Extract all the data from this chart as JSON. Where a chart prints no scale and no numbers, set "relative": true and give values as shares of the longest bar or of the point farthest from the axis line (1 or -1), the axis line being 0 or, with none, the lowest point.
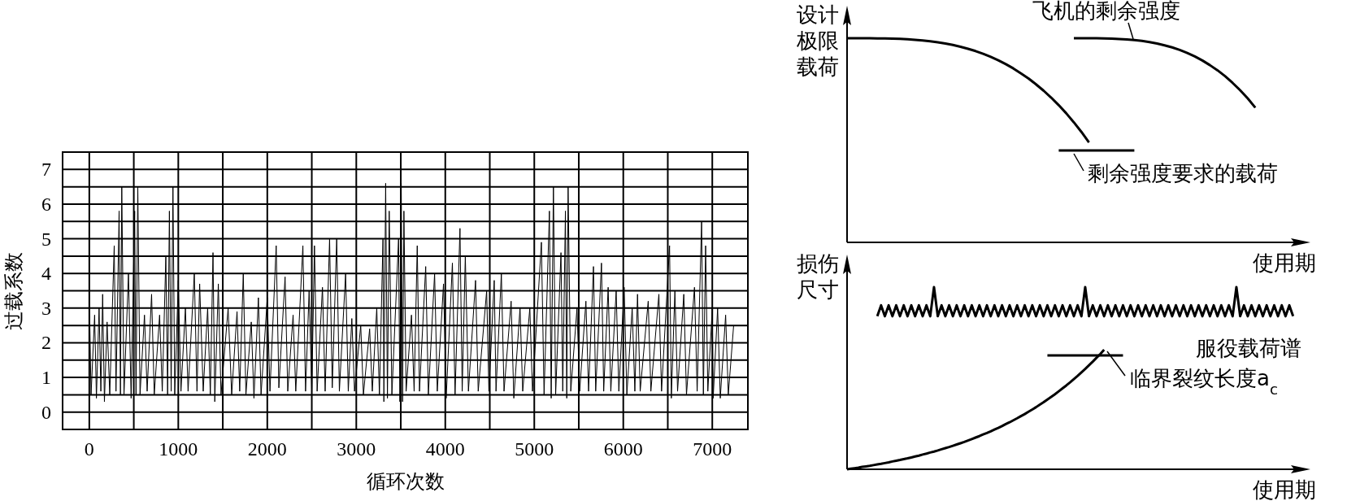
{
  "chart_data": [
    {
      "type": "line",
      "xlabel": "循环次数",
      "ylabel": "过载系数",
      "xlim": [
        -300,
        7400
      ],
      "ylim": [
        -0.5,
        7.5
      ],
      "grid": true,
      "xticks": [
        0,
        {
          "value": 500,
          "label": null
        },
        1000,
        {
          "value": 1500,
          "label": null
        },
        2000,
        {
          "value": 2500,
          "label": null
        },
        3000,
        {
          "value": 3500,
          "label": null
        },
        4000,
        {
          "value": 4500,
          "label": null
        },
        5000,
        {
          "value": 5500,
          "label": null
        },
        6000,
        {
          "value": 6500,
          "label": null
        },
        7000
      ],
      "yticks": [
        0,
        {
          "value": 0.5,
          "label": null
        },
        1,
        {
          "value": 1.5,
          "label": null
        },
        2,
        {
          "value": 2.5,
          "label": null
        },
        3,
        {
          "value": 3.5,
          "label": null
        },
        4,
        {
          "value": 4.5,
          "label": null
        },
        5,
        {
          "value": 5.5,
          "label": null
        },
        6,
        {
          "value": 6.5,
          "label": null
        },
        7
      ],
      "x": [
        0,
        20,
        60,
        80,
        110,
        130,
        150,
        170,
        200,
        230,
        280,
        300,
        335,
        350,
        365,
        390,
        440,
        470,
        510,
        525,
        545,
        570,
        620,
        650,
        700,
        730,
        790,
        820,
        860,
        880,
        900,
        920,
        940,
        960,
        1000,
        1030,
        1080,
        1110,
        1180,
        1210,
        1240,
        1280,
        1330,
        1360,
        1390,
        1410,
        1450,
        1480,
        1560,
        1600,
        1660,
        1690,
        1730,
        1760,
        1820,
        1850,
        1900,
        1930,
        2000,
        2030,
        2100,
        2130,
        2200,
        2230,
        2290,
        2320,
        2400,
        2430,
        2470,
        2500,
        2530,
        2560,
        2620,
        2650,
        2700,
        2730,
        2780,
        2810,
        2880,
        2910,
        2950,
        2980,
        3050,
        3080,
        3150,
        3180,
        3230,
        3260,
        3300,
        3310,
        3330,
        3350,
        3370,
        3400,
        3475,
        3490,
        3505,
        3520,
        3535,
        3560,
        3620,
        3650,
        3685,
        3710,
        3780,
        3810,
        3880,
        3910,
        3980,
        4010,
        4080,
        4110,
        4165,
        4190,
        4225,
        4260,
        4340,
        4370,
        4465,
        4490,
        4550,
        4570,
        4630,
        4660,
        4740,
        4770,
        4840,
        4870,
        4950,
        4980,
        5080,
        5110,
        5170,
        5190,
        5215,
        5240,
        5300,
        5320,
        5350,
        5365,
        5380,
        5410,
        5480,
        5510,
        5580,
        5610,
        5665,
        5690,
        5755,
        5780,
        5830,
        5860,
        5920,
        5950,
        6010,
        6040,
        6100,
        6130,
        6160,
        6190,
        6280,
        6310,
        6400,
        6430,
        6520,
        6540,
        6580,
        6610,
        6680,
        6710,
        6800,
        6830,
        6880,
        6900,
        6925,
        6950,
        7000,
        7010,
        7060,
        7090,
        7150,
        7180,
        7240
      ],
      "series": [
        {
          "color": "#000000",
          "values": [
            3.4,
            0.5,
            2.8,
            0.4,
            3.0,
            0.6,
            3.4,
            0.3,
            2.6,
            0.5,
            4.8,
            0.6,
            5.8,
            0.5,
            6.5,
            0.5,
            4.0,
            0.4,
            5.8,
            0.5,
            6.5,
            0.5,
            2.8,
            0.6,
            3.4,
            0.5,
            2.8,
            0.6,
            4.5,
            0.5,
            5.8,
            0.6,
            6.5,
            0.5,
            3.8,
            0.6,
            3.0,
            0.6,
            4.0,
            0.6,
            3.7,
            0.6,
            3.0,
            0.5,
            4.6,
            0.3,
            3.7,
            0.5,
            3.0,
            0.5,
            2.9,
            0.6,
            4.0,
            0.5,
            2.6,
            0.4,
            3.3,
            0.5,
            3.3,
            0.6,
            4.8,
            0.7,
            3.9,
            0.6,
            2.8,
            0.6,
            4.8,
            0.6,
            3.5,
            0.6,
            4.8,
            0.6,
            3.6,
            0.6,
            5.0,
            0.7,
            5.0,
            0.6,
            4.0,
            0.6,
            2.7,
            0.6,
            2.5,
            0.5,
            2.4,
            0.6,
            3.0,
            0.5,
            5.0,
            0.3,
            6.6,
            0.4,
            5.8,
            0.5,
            5.0,
            0.3,
            6.6,
            0.3,
            5.8,
            0.6,
            2.8,
            0.6,
            4.8,
            0.6,
            4.2,
            0.5,
            4.0,
            0.6,
            3.7,
            0.4,
            4.3,
            0.5,
            5.3,
            0.6,
            4.5,
            0.6,
            3.8,
            0.6,
            3.5,
            0.6,
            3.8,
            0.6,
            4.0,
            0.6,
            3.2,
            0.4,
            3.0,
            0.6,
            3.0,
            0.6,
            4.9,
            0.5,
            5.8,
            0.4,
            6.5,
            0.5,
            4.6,
            0.6,
            5.8,
            0.4,
            6.5,
            0.6,
            3.0,
            0.6,
            3.2,
            0.6,
            4.2,
            0.6,
            4.3,
            0.6,
            3.6,
            0.6,
            3.5,
            0.6,
            3.6,
            0.5,
            3.0,
            0.6,
            3.4,
            0.6,
            3.2,
            0.6,
            3.4,
            0.6,
            4.8,
            0.4,
            3.5,
            0.6,
            3.4,
            0.5,
            3.6,
            0.6,
            5.5,
            0.5,
            4.8,
            0.6,
            3.0,
            0.4,
            3.0,
            0.4,
            2.8,
            0.5,
            2.5
          ]
        }
      ]
    },
    {
      "type": "line",
      "relative": true,
      "ylabel": "设计极限载荷",
      "xlabel": "使用期",
      "categories": [
        null,
        null,
        null,
        null,
        null,
        null,
        null,
        null,
        null,
        null,
        null,
        null,
        null,
        null,
        null,
        null,
        null,
        null,
        null,
        null,
        null,
        null,
        null,
        null,
        null,
        null,
        null,
        null,
        null,
        null,
        null,
        null,
        null,
        null,
        null,
        null,
        null,
        null,
        null,
        null,
        null,
        null,
        null,
        null,
        null,
        null,
        null,
        null,
        null,
        null,
        null,
        null,
        null,
        null,
        null,
        null,
        null,
        null,
        null,
        null,
        null
      ],
      "annotations": [
        "飞机的剩余强度",
        "剩余强度要求的载荷"
      ],
      "series": [
        {
          "color": "#000000",
          "values": [
            1,
            1,
            1,
            1,
            0.999,
            0.999,
            0.998,
            0.997,
            0.995,
            0.992,
            0.989,
            0.985,
            0.98,
            0.974,
            0.967,
            0.958,
            0.948,
            0.937,
            0.924,
            0.909,
            0.892,
            0.873,
            0.852,
            0.828,
            0.803,
            0.774,
            0.743,
            0.709,
            0.672,
            0.632,
            0.588,
            0.541,
            0.49,
            null,
            null,
            null,
            null,
            null,
            null,
            null,
            null,
            null,
            null,
            null,
            null,
            null,
            null,
            null,
            null,
            null,
            null,
            null,
            null,
            null,
            null,
            null,
            null,
            null,
            null,
            null,
            null
          ]
        },
        {
          "color": "#000000",
          "values": [
            null,
            null,
            null,
            null,
            null,
            null,
            null,
            null,
            null,
            null,
            null,
            null,
            null,
            null,
            null,
            null,
            null,
            null,
            null,
            null,
            null,
            null,
            null,
            null,
            null,
            null,
            null,
            null,
            null,
            null,
            1,
            1,
            1,
            1,
            0.999,
            0.998,
            0.996,
            0.994,
            0.991,
            0.987,
            0.981,
            0.974,
            0.965,
            0.955,
            0.943,
            0.928,
            0.911,
            0.891,
            0.868,
            0.843,
            0.814,
            0.781,
            0.745,
            0.705,
            0.66,
            null,
            null,
            null,
            null,
            null,
            null
          ]
        },
        {
          "color": "#000000",
          "values": [
            null,
            null,
            null,
            null,
            null,
            null,
            null,
            null,
            null,
            null,
            null,
            null,
            null,
            null,
            null,
            null,
            null,
            null,
            null,
            null,
            null,
            null,
            null,
            null,
            null,
            null,
            null,
            null,
            0.45,
            0.45,
            0.45,
            0.45,
            0.45,
            0.45,
            0.45,
            0.45,
            0.45,
            0.45,
            0.45,
            null,
            null,
            null,
            null,
            null,
            null,
            null,
            null,
            null,
            null,
            null,
            null,
            null,
            null,
            null,
            null,
            null,
            null,
            null,
            null,
            null,
            null
          ]
        }
      ]
    },
    {
      "type": "line",
      "relative": true,
      "ylabel": "损伤尺寸",
      "xlabel": "使用期",
      "categories": [
        null,
        null,
        null,
        null,
        null,
        null,
        null,
        null,
        null,
        null,
        null,
        null,
        null,
        null,
        null,
        null,
        null,
        null,
        null,
        null,
        null,
        null,
        null,
        null,
        null,
        null,
        null,
        null,
        null,
        null,
        null,
        null,
        null,
        null,
        null,
        null,
        null,
        null,
        null,
        null,
        null,
        null,
        null,
        null,
        null,
        null,
        null,
        null,
        null,
        null,
        null,
        null,
        null,
        null,
        null,
        null,
        null,
        null,
        null,
        null,
        null,
        null,
        null,
        null,
        null,
        null,
        null,
        null,
        null,
        null,
        null,
        null,
        null,
        null,
        null,
        null,
        null,
        null,
        null,
        null,
        null,
        null,
        null,
        null,
        null,
        null,
        null,
        null,
        null,
        null,
        null,
        null,
        null,
        null,
        null,
        null,
        null,
        null,
        null,
        null,
        null,
        null,
        null,
        null,
        null,
        null,
        null,
        null,
        null,
        null,
        null,
        null,
        null,
        null,
        null,
        null,
        null,
        null,
        null,
        null,
        null
      ],
      "annotations": [
        "临界裂纹长度a$_{c}$"
      ],
      "series": [
        {
          "color": "#000000",
          "values": [
            0,
            0.003,
            0.006,
            0.009,
            0.013,
            0.016,
            0.019,
            0.023,
            0.027,
            0.03,
            0.034,
            0.038,
            0.043,
            0.047,
            0.051,
            0.056,
            0.06,
            0.065,
            0.07,
            0.075,
            0.081,
            0.086,
            0.092,
            0.097,
            0.103,
            0.11,
            0.116,
            0.122,
            0.129,
            0.136,
            0.143,
            0.15,
            0.158,
            0.166,
            0.174,
            0.182,
            0.191,
            0.199,
            0.208,
            0.218,
            0.227,
            0.237,
            0.248,
            0.258,
            0.269,
            0.28,
            0.292,
            0.303,
            0.316,
            0.328,
            0.341,
            0.355,
            0.368,
            0.383,
            0.397,
            0.412,
            0.428,
            0.444,
            0.46,
            0.477,
            0.495,
            0.513,
            0.532,
            0.551,
            0.571,
            0.591,
            0.612,
            0.633,
            0.656,
            null,
            null,
            null,
            null,
            null,
            null,
            null,
            null,
            null,
            null,
            null,
            null,
            null,
            null,
            null,
            null,
            null,
            null,
            null,
            null,
            null,
            null,
            null,
            null,
            null,
            null,
            null,
            null,
            null,
            null,
            null,
            null,
            null,
            null,
            null,
            null,
            null,
            null,
            null,
            null,
            null,
            null,
            null,
            null,
            null,
            null,
            null,
            null,
            null,
            null,
            null,
            null
          ]
        },
        {
          "color": "#000000",
          "values": [
            null,
            null,
            null,
            null,
            null,
            null,
            null,
            null,
            null,
            null,
            null,
            null,
            null,
            null,
            null,
            null,
            null,
            null,
            null,
            null,
            null,
            null,
            null,
            null,
            null,
            null,
            null,
            null,
            null,
            null,
            null,
            null,
            null,
            null,
            null,
            null,
            null,
            null,
            null,
            null,
            null,
            null,
            null,
            null,
            null,
            null,
            null,
            null,
            null,
            null,
            null,
            null,
            null,
            0.625,
            0.625,
            0.625,
            0.625,
            0.625,
            0.625,
            0.625,
            0.625,
            0.625,
            0.625,
            0.625,
            0.625,
            0.625,
            0.625,
            0.625,
            0.625,
            0.625,
            0.625,
            0.625,
            0.625,
            0.625,
            null,
            null,
            null,
            null,
            null,
            null,
            null,
            null,
            null,
            null,
            null,
            null,
            null,
            null,
            null,
            null,
            null,
            null,
            null,
            null,
            null,
            null,
            null,
            null,
            null,
            null,
            null,
            null,
            null,
            null,
            null,
            null,
            null,
            null,
            null,
            null,
            null,
            null,
            null,
            null,
            null,
            null,
            null,
            null,
            null,
            null,
            null
          ]
        },
        {
          "name": "服役载荷谱",
          "color": "#000000",
          "values": [
            null,
            null,
            null,
            null,
            null,
            null,
            null,
            null,
            0.84,
            0.9,
            0.84,
            0.9,
            0.84,
            0.9,
            0.84,
            0.9,
            0.84,
            0.9,
            0.84,
            0.9,
            0.84,
            0.9,
            0.84,
            1.0,
            0.84,
            0.9,
            0.84,
            0.9,
            0.84,
            0.9,
            0.84,
            0.9,
            0.84,
            0.9,
            0.84,
            0.9,
            0.84,
            0.9,
            0.84,
            0.9,
            0.84,
            0.9,
            0.84,
            0.9,
            0.84,
            0.9,
            0.84,
            0.9,
            0.84,
            0.9,
            0.84,
            0.9,
            0.84,
            0.9,
            0.84,
            0.9,
            0.84,
            0.9,
            0.84,
            0.9,
            0.84,
            0.9,
            0.84,
            1.0,
            0.84,
            0.9,
            0.84,
            0.9,
            0.84,
            0.9,
            0.84,
            0.9,
            0.84,
            0.9,
            0.84,
            0.9,
            0.84,
            0.9,
            0.84,
            0.9,
            0.84,
            0.9,
            0.84,
            0.9,
            0.84,
            0.9,
            0.84,
            0.9,
            0.84,
            0.9,
            0.84,
            0.9,
            0.84,
            0.9,
            0.84,
            0.9,
            0.84,
            0.9,
            0.84,
            0.9,
            0.84,
            0.9,
            0.84,
            1.0,
            0.84,
            0.9,
            0.84,
            0.9,
            0.84,
            0.9,
            0.84,
            0.9,
            0.84,
            0.9,
            0.84,
            0.9,
            0.84,
            0.9,
            0.84,
            null,
            null
          ]
        }
      ]
    }
  ]
}
